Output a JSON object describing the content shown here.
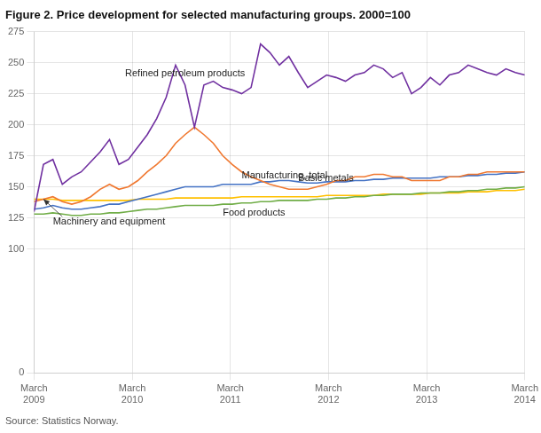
{
  "chart_data": {
    "type": "line",
    "title": "Figure 2. Price development for selected manufacturing groups. 2000=100",
    "source": "Source: Statistics Norway.",
    "xlim": [
      0,
      52
    ],
    "xticks": [
      {
        "value": 0,
        "label": "March\n2009"
      },
      {
        "value": 10.4,
        "label": "March\n2010"
      },
      {
        "value": 20.8,
        "label": "March\n2011"
      },
      {
        "value": 31.2,
        "label": "March\n2012"
      },
      {
        "value": 41.6,
        "label": "March\n2013"
      },
      {
        "value": 52,
        "label": "March\n2014"
      }
    ],
    "ylim": [
      0,
      275
    ],
    "yticks": [
      0,
      100,
      125,
      150,
      175,
      200,
      225,
      250,
      275
    ],
    "grid": true,
    "series": [
      {
        "name": "Refined petroleum products",
        "color": "#7030a0",
        "values": [
          130,
          168,
          172,
          152,
          158,
          162,
          170,
          178,
          188,
          168,
          172,
          182,
          192,
          205,
          222,
          248,
          232,
          198,
          232,
          235,
          230,
          228,
          225,
          230,
          265,
          258,
          248,
          255,
          242,
          230,
          235,
          240,
          238,
          235,
          240,
          242,
          248,
          245,
          238,
          242,
          225,
          230,
          238,
          232,
          240,
          242,
          248,
          245,
          242,
          240,
          245,
          242,
          240
        ]
      },
      {
        "name": "Basic metals",
        "color": "#f07830",
        "values": [
          138,
          140,
          142,
          138,
          136,
          138,
          142,
          148,
          152,
          148,
          150,
          155,
          162,
          168,
          175,
          185,
          192,
          198,
          192,
          185,
          175,
          168,
          162,
          158,
          155,
          152,
          150,
          148,
          148,
          148,
          150,
          152,
          155,
          155,
          158,
          158,
          160,
          160,
          158,
          158,
          155,
          155,
          155,
          155,
          158,
          158,
          160,
          160,
          162,
          162,
          162,
          162,
          162
        ]
      },
      {
        "name": "Manufacturing, total",
        "color": "#4472c4",
        "values": [
          132,
          133,
          135,
          133,
          132,
          132,
          133,
          134,
          136,
          136,
          138,
          140,
          142,
          144,
          146,
          148,
          150,
          150,
          150,
          150,
          152,
          152,
          152,
          152,
          154,
          154,
          155,
          155,
          154,
          153,
          153,
          154,
          154,
          154,
          155,
          155,
          156,
          156,
          157,
          157,
          157,
          157,
          157,
          158,
          158,
          158,
          159,
          159,
          160,
          160,
          161,
          161,
          162
        ]
      },
      {
        "name": "Food products",
        "color": "#70ad47",
        "values": [
          128,
          128,
          129,
          128,
          127,
          127,
          128,
          128,
          129,
          129,
          130,
          131,
          132,
          132,
          133,
          134,
          135,
          135,
          135,
          135,
          136,
          136,
          137,
          137,
          138,
          138,
          139,
          139,
          139,
          139,
          140,
          140,
          141,
          141,
          142,
          142,
          143,
          143,
          144,
          144,
          144,
          145,
          145,
          145,
          146,
          146,
          147,
          147,
          148,
          148,
          149,
          149,
          150
        ]
      },
      {
        "name": "Machinery and equipment",
        "color": "#ffc000",
        "values": [
          140,
          140,
          140,
          139,
          139,
          139,
          139,
          139,
          139,
          139,
          139,
          140,
          140,
          140,
          140,
          141,
          141,
          141,
          141,
          141,
          141,
          141,
          142,
          142,
          142,
          142,
          142,
          142,
          142,
          142,
          142,
          143,
          143,
          143,
          143,
          143,
          143,
          144,
          144,
          144,
          144,
          144,
          145,
          145,
          145,
          145,
          146,
          146,
          146,
          147,
          147,
          147,
          148
        ]
      }
    ]
  }
}
